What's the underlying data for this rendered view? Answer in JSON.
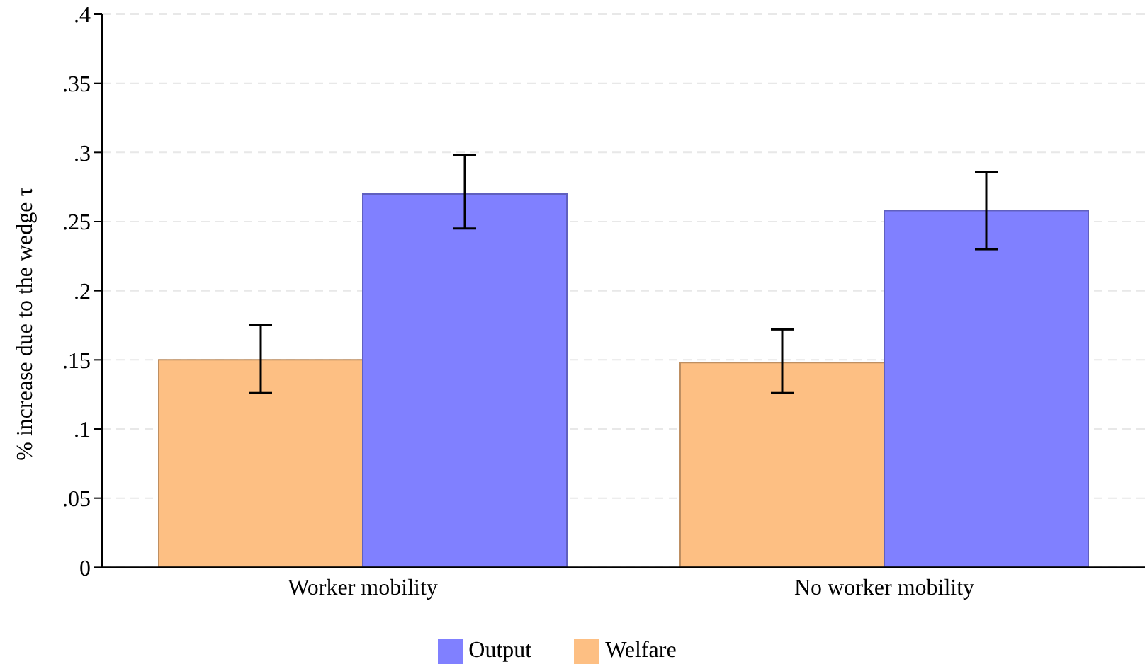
{
  "chart_data": {
    "type": "bar",
    "ylabel": "% increase due to the wedge τ",
    "categories": [
      "Worker mobility",
      "No worker mobility"
    ],
    "series": [
      {
        "name": "Welfare",
        "color": "#fdbf83",
        "values": [
          0.15,
          0.148
        ],
        "errors": [
          [
            0.126,
            0.175
          ],
          [
            0.126,
            0.172
          ]
        ]
      },
      {
        "name": "Output",
        "color": "#8080ff",
        "values": [
          0.27,
          0.258
        ],
        "errors": [
          [
            0.245,
            0.298
          ],
          [
            0.23,
            0.286
          ]
        ]
      }
    ],
    "ylim": [
      0,
      0.4
    ],
    "yticks": [
      0,
      {
        "value": 0.05,
        "label": ".05"
      },
      {
        "value": 0.1,
        "label": ".1"
      },
      {
        "value": 0.15,
        "label": ".15"
      },
      {
        "value": 0.2,
        "label": ".2"
      },
      {
        "value": 0.25,
        "label": ".25"
      },
      {
        "value": 0.3,
        "label": ".3"
      },
      {
        "value": 0.35,
        "label": ".35"
      },
      {
        "value": 0.4,
        "label": ".4"
      }
    ],
    "grid": "y",
    "legend": "bottom"
  }
}
